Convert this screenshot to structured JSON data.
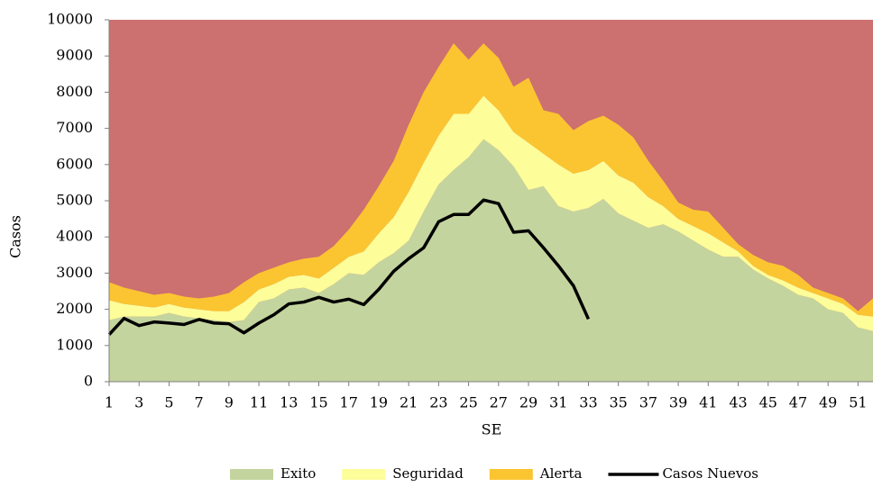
{
  "chart_data": {
    "type": "area",
    "stacked": true,
    "y_label": "Casos",
    "x_label": "SE",
    "plot_background": "#cd7070",
    "x": [
      1,
      2,
      3,
      4,
      5,
      6,
      7,
      8,
      9,
      10,
      11,
      12,
      13,
      14,
      15,
      16,
      17,
      18,
      19,
      20,
      21,
      22,
      23,
      24,
      25,
      26,
      27,
      28,
      29,
      30,
      31,
      32,
      33,
      34,
      35,
      36,
      37,
      38,
      39,
      40,
      41,
      42,
      43,
      44,
      45,
      46,
      47,
      48,
      49,
      50,
      51,
      52
    ],
    "xlim": [
      1,
      52
    ],
    "xticks": [
      1,
      3,
      5,
      7,
      9,
      11,
      13,
      15,
      17,
      19,
      21,
      23,
      25,
      27,
      29,
      31,
      33,
      35,
      37,
      39,
      41,
      43,
      45,
      47,
      49,
      51
    ],
    "ylim": [
      0,
      10000
    ],
    "yticks": [
      0,
      1000,
      2000,
      3000,
      4000,
      5000,
      6000,
      7000,
      8000,
      9000,
      10000
    ],
    "legend_position": "bottom",
    "series": [
      {
        "name": "Exito",
        "color": "#c4d49e",
        "values": [
          1700,
          1800,
          1800,
          1800,
          1900,
          1800,
          1750,
          1700,
          1650,
          1700,
          2200,
          2300,
          2550,
          2600,
          2450,
          2700,
          3000,
          2950,
          3300,
          3550,
          3900,
          4700,
          5450,
          5850,
          6200,
          6700,
          6400,
          5950,
          5300,
          5400,
          4850,
          4700,
          4800,
          5050,
          4650,
          4450,
          4250,
          4350,
          4150,
          3900,
          3650,
          3450,
          3450,
          3100,
          2850,
          2650,
          2400,
          2300,
          2000,
          1900,
          1500,
          1400
        ]
      },
      {
        "name": "Seguridad",
        "color": "#fdfd9a",
        "values": [
          550,
          350,
          300,
          250,
          250,
          250,
          250,
          250,
          300,
          500,
          350,
          400,
          350,
          350,
          400,
          450,
          450,
          650,
          800,
          1000,
          1350,
          1350,
          1350,
          1550,
          1200,
          1200,
          1100,
          950,
          1300,
          900,
          1150,
          1050,
          1050,
          1050,
          1050,
          1050,
          850,
          500,
          350,
          400,
          450,
          400,
          150,
          100,
          100,
          150,
          200,
          150,
          300,
          250,
          350,
          400
        ]
      },
      {
        "name": "Alerta",
        "color": "#fbc531",
        "values": [
          500,
          450,
          400,
          350,
          300,
          300,
          300,
          400,
          500,
          550,
          450,
          450,
          400,
          450,
          600,
          600,
          750,
          1150,
          1300,
          1550,
          1850,
          1950,
          1900,
          1950,
          1500,
          1450,
          1450,
          1250,
          1800,
          1200,
          1400,
          1200,
          1350,
          1250,
          1400,
          1250,
          1000,
          700,
          450,
          450,
          600,
          400,
          200,
          300,
          350,
          400,
          350,
          150,
          150,
          150,
          100,
          500
        ]
      },
      {
        "name": "Casos Nuevos",
        "type": "line",
        "color": "#000000",
        "values": [
          1300,
          1750,
          1550,
          1650,
          1620,
          1580,
          1720,
          1620,
          1600,
          1350,
          1620,
          1850,
          2150,
          2200,
          2330,
          2200,
          2280,
          2130,
          2550,
          3050,
          3400,
          3700,
          4420,
          4620,
          4620,
          5020,
          4920,
          4130,
          4170,
          3700,
          3200,
          2650,
          1730,
          null,
          null,
          null,
          null,
          null,
          null,
          null,
          null,
          null,
          null,
          null,
          null,
          null,
          null,
          null,
          null,
          null,
          null,
          null
        ]
      }
    ]
  }
}
